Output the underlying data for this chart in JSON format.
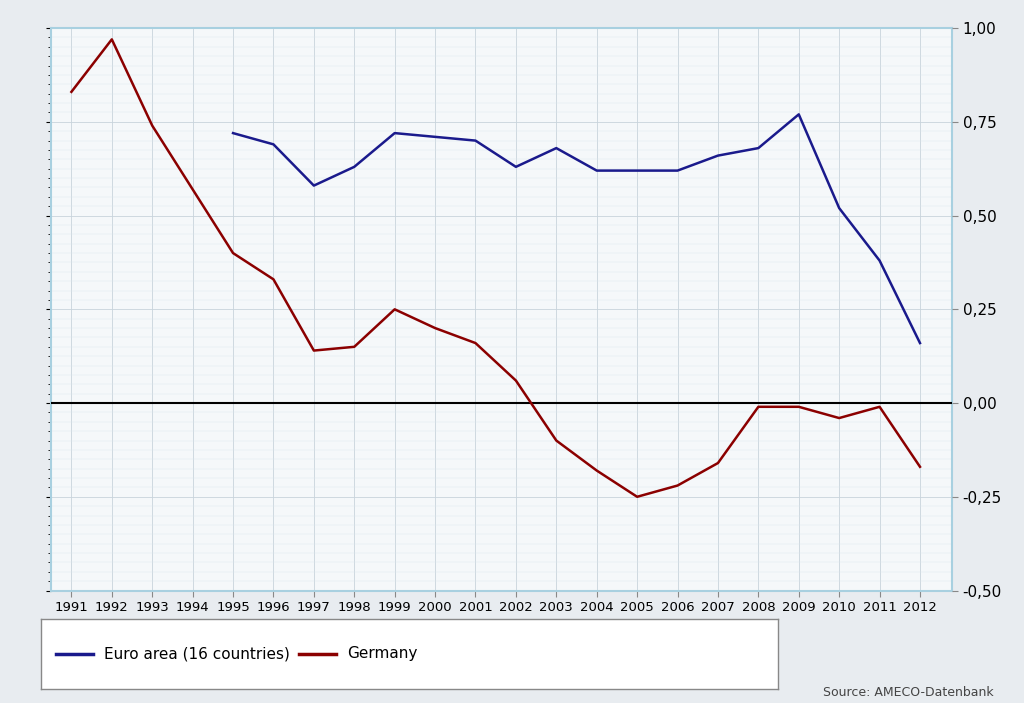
{
  "years": [
    1991,
    1992,
    1993,
    1994,
    1995,
    1996,
    1997,
    1998,
    1999,
    2000,
    2001,
    2002,
    2003,
    2004,
    2005,
    2006,
    2007,
    2008,
    2009,
    2010,
    2011,
    2012
  ],
  "euro_area": [
    null,
    null,
    null,
    null,
    0.72,
    0.69,
    0.58,
    0.63,
    0.72,
    0.71,
    0.7,
    0.63,
    0.68,
    0.62,
    0.62,
    0.62,
    0.66,
    0.68,
    0.77,
    0.52,
    0.38,
    0.16
  ],
  "germany": [
    0.83,
    0.97,
    0.74,
    0.57,
    0.4,
    0.33,
    0.14,
    0.15,
    0.25,
    0.2,
    0.16,
    0.06,
    -0.1,
    -0.18,
    -0.25,
    -0.22,
    -0.16,
    -0.01,
    -0.01,
    -0.04,
    -0.01,
    -0.17
  ],
  "euro_area_color": "#1a1a8c",
  "germany_color": "#8b0000",
  "background_color": "#f0f4f8",
  "grid_color": "#d0d8e0",
  "fig_background": "#e8ecf0",
  "ylim": [
    -0.5,
    1.0
  ],
  "yticks": [
    -0.5,
    -0.25,
    0.0,
    0.25,
    0.5,
    0.75,
    1.0
  ],
  "ytick_labels": [
    "-0,50",
    "-0,25",
    "0,00",
    "0,25",
    "0,50",
    "0,75",
    "1,00"
  ],
  "legend_euro": "Euro area (16 countries)",
  "legend_germany": "Germany",
  "source_text": "Source: AMECO-Datenbank",
  "line_width": 1.8,
  "border_color": "#a8d0e0"
}
